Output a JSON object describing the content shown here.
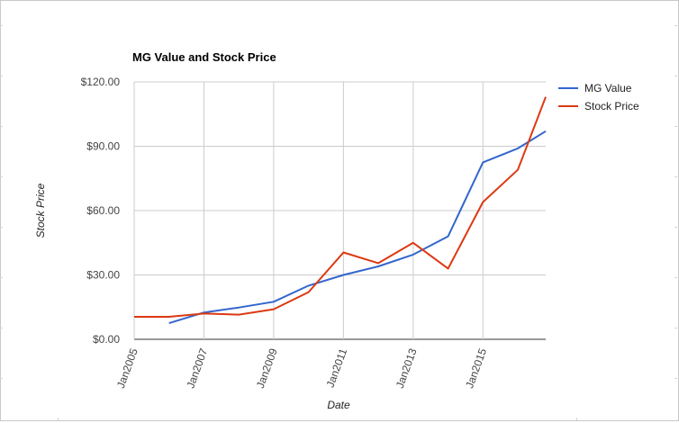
{
  "chart_data": {
    "type": "line",
    "title": "MG Value and Stock Price",
    "xlabel": "Date",
    "ylabel": "Stock Price",
    "x_ticks": [
      "Jan2005",
      "Jan2007",
      "Jan2009",
      "Jan2011",
      "Jan2013",
      "Jan2015"
    ],
    "y_ticks": [
      "$0.00",
      "$30.00",
      "$60.00",
      "$90.00",
      "$120.00"
    ],
    "ylim": [
      0,
      120
    ],
    "xlim": [
      2005,
      2016.8
    ],
    "grid": true,
    "legend_position": "right",
    "series": [
      {
        "name": "MG Value",
        "color": "#3366cc",
        "points": [
          {
            "x": 2006,
            "y": 7.5
          },
          {
            "x": 2007,
            "y": 12.5
          },
          {
            "x": 2008,
            "y": 14.8
          },
          {
            "x": 2009,
            "y": 17.5
          },
          {
            "x": 2010,
            "y": 25
          },
          {
            "x": 2011,
            "y": 30
          },
          {
            "x": 2012,
            "y": 34
          },
          {
            "x": 2013,
            "y": 39.5
          },
          {
            "x": 2014,
            "y": 48
          },
          {
            "x": 2015,
            "y": 82.5
          },
          {
            "x": 2016,
            "y": 89
          },
          {
            "x": 2016.8,
            "y": 97
          }
        ]
      },
      {
        "name": "Stock Price",
        "color": "#dc3912",
        "points": [
          {
            "x": 2005,
            "y": 10.5
          },
          {
            "x": 2006,
            "y": 10.5
          },
          {
            "x": 2007,
            "y": 12
          },
          {
            "x": 2008,
            "y": 11.5
          },
          {
            "x": 2009,
            "y": 14
          },
          {
            "x": 2010,
            "y": 22
          },
          {
            "x": 2011,
            "y": 40.5
          },
          {
            "x": 2012,
            "y": 35.5
          },
          {
            "x": 2013,
            "y": 45
          },
          {
            "x": 2014,
            "y": 33
          },
          {
            "x": 2015,
            "y": 64
          },
          {
            "x": 2016,
            "y": 79
          },
          {
            "x": 2016.8,
            "y": 113
          }
        ]
      }
    ]
  }
}
